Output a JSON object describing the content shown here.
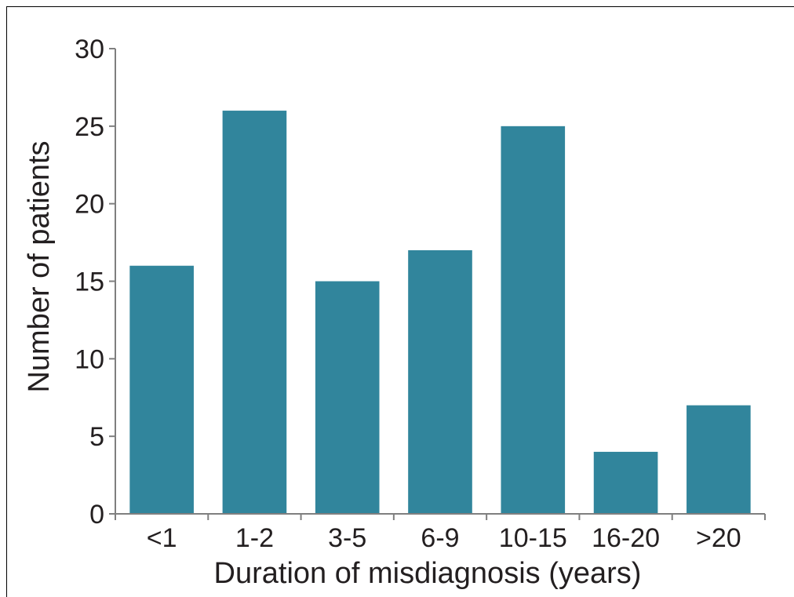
{
  "chart_data": {
    "type": "bar",
    "categories": [
      "<1",
      "1-2",
      "3-5",
      "6-9",
      "10-15",
      "16-20",
      ">20"
    ],
    "values": [
      16,
      26,
      15,
      17,
      25,
      4,
      7
    ],
    "title": "",
    "xlabel": "Duration of misdiagnosis (years)",
    "ylabel": "Number of patients",
    "ylim": [
      0,
      30
    ],
    "yticks": [
      "0",
      "5",
      "10",
      "15",
      "20",
      "25",
      "30"
    ],
    "bar_color": "#31859c",
    "axis_color": "#7f7f7f",
    "grid": false,
    "legend": "none"
  }
}
